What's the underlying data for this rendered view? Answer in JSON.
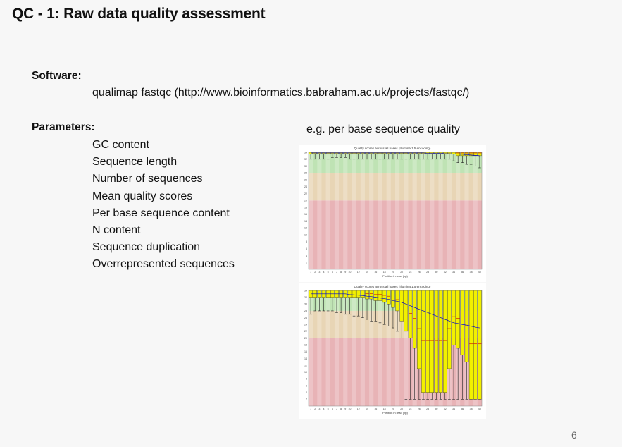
{
  "slide": {
    "title": "QC - 1: Raw data quality assessment",
    "page_number": "6"
  },
  "software": {
    "label": "Software:",
    "value": "qualimap fastqc (http://www.bioinformatics.babraham.ac.uk/projects/fastqc/)"
  },
  "parameters": {
    "label": "Parameters:",
    "items": [
      "GC content",
      "Sequence length",
      "Number of sequences",
      "Mean quality scores",
      "Per base sequence content",
      "N content",
      "Sequence duplication",
      "Overrepresented sequences"
    ]
  },
  "example": {
    "caption": "e.g. per base sequence quality"
  },
  "colors": {
    "good_zone": "#bfe3b4",
    "ok_zone": "#e8d5b5",
    "bad_zone": "#e8b3b6",
    "box_fill": "#f2f000",
    "median_line": "#cc0000",
    "mean_line": "#0000cc"
  },
  "chart_data": [
    {
      "type": "box",
      "title": "Quality scores across all bases (Illumina 1.5 encoding)",
      "xlabel": "Position in read (bp)",
      "ylim": [
        0,
        34
      ],
      "zones": {
        "good": [
          28,
          34
        ],
        "ok": [
          20,
          28
        ],
        "bad": [
          0,
          20
        ]
      },
      "x_ticks": [
        "1",
        "2",
        "3",
        "4",
        "5",
        "6",
        "7",
        "8",
        "9",
        "10",
        "",
        "12",
        "",
        "14",
        "",
        "16",
        "",
        "18",
        "",
        "20",
        "",
        "22",
        "",
        "24",
        "",
        "26",
        "",
        "28",
        "",
        "30",
        "",
        "32",
        "",
        "34",
        "",
        "36",
        "",
        "38",
        "",
        "40"
      ],
      "y_ticks": [
        2,
        4,
        6,
        8,
        10,
        12,
        14,
        16,
        18,
        20,
        22,
        24,
        26,
        28,
        30,
        32,
        34
      ],
      "series": [
        {
          "q1": [
            33.5,
            33.5,
            33.5,
            33.5,
            33.5,
            33.5,
            33.5,
            33.5,
            33.5,
            33.5,
            33.5,
            33.5,
            33.5,
            33.5,
            33.5,
            33.5,
            33.5,
            33.5,
            33.5,
            33.5,
            33.5,
            33.5,
            33.5,
            33.5,
            33.5,
            33.5,
            33.5,
            33.5,
            33.5,
            33.5,
            33.5,
            33.5,
            33.5,
            33.5,
            33,
            33,
            33,
            33,
            33,
            33
          ],
          "q3": [
            34,
            34,
            34,
            34,
            34,
            34,
            34,
            34,
            34,
            34,
            34,
            34,
            34,
            34,
            34,
            34,
            34,
            34,
            34,
            34,
            34,
            34,
            34,
            34,
            34,
            34,
            34,
            34,
            34,
            34,
            34,
            34,
            34,
            34,
            34,
            34,
            34,
            34,
            34,
            34
          ],
          "low": [
            32,
            32,
            32,
            32,
            32,
            32.5,
            32.5,
            32.5,
            32.5,
            32,
            32,
            32,
            32,
            32,
            32,
            32,
            32,
            32,
            32,
            32,
            32,
            32,
            32,
            32,
            32,
            32,
            32,
            32,
            32,
            32,
            32,
            32,
            32,
            31.5,
            31,
            31,
            30.5,
            30.5,
            30,
            29.5
          ],
          "mean": [
            33.8,
            33.8,
            33.8,
            33.8,
            33.8,
            33.8,
            33.8,
            33.8,
            33.8,
            33.8,
            33.8,
            33.8,
            33.8,
            33.8,
            33.8,
            33.8,
            33.8,
            33.8,
            33.8,
            33.8,
            33.8,
            33.8,
            33.8,
            33.8,
            33.8,
            33.8,
            33.8,
            33.7,
            33.7,
            33.7,
            33.7,
            33.6,
            33.6,
            33.5,
            33.5,
            33.4,
            33.3,
            33.2,
            33.1,
            33
          ]
        }
      ]
    },
    {
      "type": "box",
      "title": "Quality scores across all bases (Illumina 1.5 encoding)",
      "xlabel": "Position in read (bp)",
      "ylim": [
        0,
        34
      ],
      "zones": {
        "good": [
          28,
          34
        ],
        "ok": [
          20,
          28
        ],
        "bad": [
          0,
          20
        ]
      },
      "x_ticks": [
        "1",
        "2",
        "3",
        "4",
        "5",
        "6",
        "7",
        "8",
        "9",
        "10",
        "",
        "12",
        "",
        "14",
        "",
        "16",
        "",
        "18",
        "",
        "20",
        "",
        "22",
        "",
        "24",
        "",
        "26",
        "",
        "28",
        "",
        "30",
        "",
        "32",
        "",
        "34",
        "",
        "36",
        "",
        "38",
        "",
        "40"
      ],
      "y_ticks": [
        2,
        4,
        6,
        8,
        10,
        12,
        14,
        16,
        18,
        20,
        22,
        24,
        26,
        28,
        30,
        32,
        34
      ],
      "series": [
        {
          "q1": [
            32,
            32,
            32,
            32,
            32,
            32,
            32,
            32,
            32,
            32,
            32,
            32,
            32,
            31.5,
            31.5,
            31,
            31,
            30.5,
            30,
            29,
            28,
            25,
            22,
            20,
            17,
            11,
            4,
            4,
            4,
            4,
            4,
            4,
            11,
            18,
            17,
            15,
            13,
            2,
            2,
            2
          ],
          "q3": [
            34,
            34,
            34,
            34,
            34,
            34,
            34,
            34,
            34,
            34,
            34,
            34,
            34,
            34,
            34,
            34,
            34,
            34,
            34,
            34,
            34,
            34,
            34,
            34,
            34,
            34,
            34,
            34,
            34,
            34,
            34,
            34,
            34,
            34,
            34,
            34,
            34,
            34,
            34,
            34
          ],
          "low": [
            27,
            28,
            28,
            28,
            28,
            28,
            27.5,
            27.5,
            27,
            27,
            26.5,
            26.5,
            26,
            25.5,
            25,
            25,
            24.5,
            24,
            23.5,
            23,
            22,
            20,
            2,
            2,
            2,
            2,
            2,
            2,
            2,
            2,
            2,
            2,
            2,
            2,
            2,
            2,
            2,
            2,
            2,
            2
          ],
          "mean": [
            33,
            33,
            33,
            33,
            33,
            33,
            33,
            33,
            33,
            32.8,
            32.7,
            32.6,
            32.5,
            32.3,
            32.2,
            32,
            31.8,
            31.6,
            31.4,
            31,
            30.8,
            30.5,
            30,
            29.5,
            29,
            28.5,
            28,
            27.5,
            27,
            26.5,
            26,
            25.5,
            25,
            24.5,
            24.3,
            24,
            23.8,
            23.5,
            23.2,
            23
          ]
        }
      ]
    }
  ]
}
